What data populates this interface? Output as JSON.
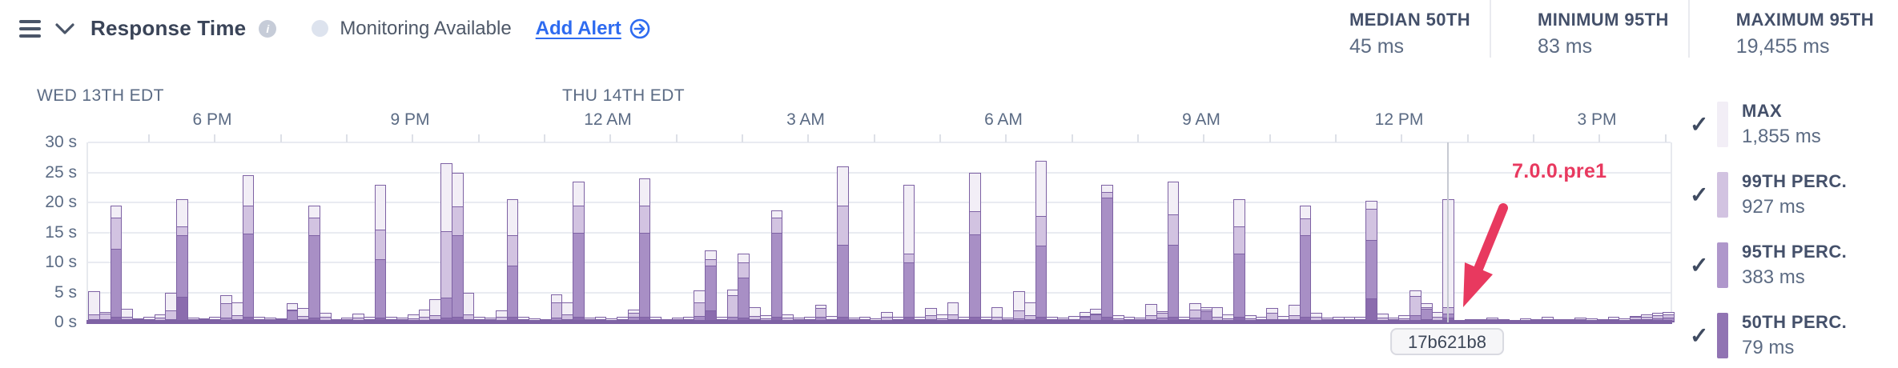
{
  "header": {
    "title": "Response Time",
    "monitoring_label": "Monitoring Available",
    "add_alert_label": "Add Alert",
    "stats": [
      {
        "label": "MEDIAN 50TH",
        "value": "45 ms"
      },
      {
        "label": "MINIMUM 95TH",
        "value": "83 ms"
      },
      {
        "label": "MAXIMUM 95TH",
        "value": "19,455 ms"
      }
    ]
  },
  "chart_data": {
    "type": "bar",
    "title": "Response Time",
    "ylabel": "seconds",
    "ylim": [
      0,
      30
    ],
    "grid": true,
    "y_ticks": [
      "30 s",
      "25 s",
      "20 s",
      "15 s",
      "10 s",
      "5 s",
      "0 s"
    ],
    "x_ticks": [
      "6 PM",
      "9 PM",
      "12 AM",
      "3 AM",
      "6 AM",
      "9 AM",
      "12 PM",
      "3 PM"
    ],
    "date_labels": [
      "WED 13TH EDT",
      "THU 14TH EDT"
    ],
    "series_order": [
      "max",
      "p99",
      "p95",
      "p50"
    ],
    "units": "seconds",
    "colors": {
      "max": "#f2eef6",
      "p99": "#d2c3e1",
      "p95": "#a88fc5",
      "p50": "#8b6cae",
      "bar_border": "#7e62a4",
      "deploy_annotation": "#e8395f"
    },
    "legend": [
      {
        "label": "MAX",
        "value": "1,855 ms",
        "color": "#f2eef6"
      },
      {
        "label": "99TH PERC.",
        "value": "927 ms",
        "color": "#d2c3e1"
      },
      {
        "label": "95TH PERC.",
        "value": "383 ms",
        "color": "#af97cb"
      },
      {
        "label": "50TH PERC.",
        "value": "79 ms",
        "color": "#9174b3"
      }
    ],
    "deploy_marker": {
      "px": 1697,
      "revision": "17b621b8",
      "annotation": "7.0.0.pre1"
    },
    "bars": [
      [
        5.2,
        1.3,
        0.5,
        0.2
      ],
      [
        1.8,
        1.5,
        0.6,
        0.3
      ],
      [
        19.5,
        17.5,
        12.3,
        0.9
      ],
      [
        2.3,
        1.0,
        0.5,
        0.2
      ],
      [
        0.7,
        0.5,
        0.3,
        0.15
      ],
      [
        0.9,
        0.6,
        0.3,
        0.15
      ],
      [
        1.4,
        0.8,
        0.4,
        0.2
      ],
      [
        4.9,
        2.0,
        0.6,
        0.25
      ],
      [
        20.5,
        16.0,
        14.5,
        4.3
      ],
      [
        0.8,
        0.5,
        0.3,
        0.15
      ],
      [
        0.7,
        0.5,
        0.3,
        0.15
      ],
      [
        1.0,
        0.6,
        0.3,
        0.15
      ],
      [
        4.6,
        3.2,
        0.8,
        0.3
      ],
      [
        3.3,
        1.2,
        0.5,
        0.2
      ],
      [
        24.5,
        19.5,
        14.8,
        0.9
      ],
      [
        0.9,
        0.6,
        0.3,
        0.15
      ],
      [
        0.8,
        0.5,
        0.3,
        0.15
      ],
      [
        0.7,
        0.5,
        0.3,
        0.15
      ],
      [
        3.2,
        2.1,
        2.0,
        0.3
      ],
      [
        2.4,
        1.1,
        0.5,
        0.2
      ],
      [
        19.5,
        17.5,
        14.5,
        0.8
      ],
      [
        1.6,
        0.9,
        0.4,
        0.2
      ],
      [
        0.6,
        0.4,
        0.3,
        0.15
      ],
      [
        0.8,
        0.5,
        0.3,
        0.15
      ],
      [
        1.5,
        0.8,
        0.4,
        0.2
      ],
      [
        0.9,
        0.5,
        0.3,
        0.15
      ],
      [
        23.0,
        15.5,
        10.5,
        0.8
      ],
      [
        1.0,
        0.6,
        0.3,
        0.15
      ],
      [
        0.8,
        0.5,
        0.3,
        0.15
      ],
      [
        1.4,
        0.7,
        0.3,
        0.15
      ],
      [
        2.1,
        0.9,
        0.4,
        0.2
      ],
      [
        3.9,
        1.2,
        0.5,
        0.2
      ],
      [
        26.5,
        15.2,
        4.2,
        0.8
      ],
      [
        25.0,
        19.3,
        14.6,
        0.9
      ],
      [
        5.0,
        1.4,
        0.5,
        0.2
      ],
      [
        0.9,
        0.5,
        0.3,
        0.15
      ],
      [
        0.8,
        0.5,
        0.3,
        0.15
      ],
      [
        2.0,
        0.9,
        0.4,
        0.2
      ],
      [
        20.5,
        14.5,
        9.5,
        0.9
      ],
      [
        0.9,
        0.5,
        0.3,
        0.15
      ],
      [
        0.7,
        0.4,
        0.3,
        0.15
      ],
      [
        0.6,
        0.4,
        0.25,
        0.12
      ],
      [
        4.7,
        3.3,
        0.8,
        0.3
      ],
      [
        3.4,
        1.3,
        0.5,
        0.2
      ],
      [
        23.5,
        19.5,
        15.0,
        0.9
      ],
      [
        0.8,
        0.5,
        0.3,
        0.15
      ],
      [
        1.0,
        0.6,
        0.3,
        0.15
      ],
      [
        0.7,
        0.4,
        0.3,
        0.15
      ],
      [
        1.0,
        0.6,
        0.3,
        0.15
      ],
      [
        2.2,
        1.6,
        0.9,
        0.3
      ],
      [
        24.0,
        19.5,
        15.0,
        0.9
      ],
      [
        0.9,
        0.5,
        0.3,
        0.15
      ],
      [
        0.6,
        0.4,
        0.25,
        0.12
      ],
      [
        0.8,
        0.5,
        0.3,
        0.15
      ],
      [
        0.9,
        0.5,
        0.3,
        0.15
      ],
      [
        5.3,
        3.3,
        1.1,
        0.3
      ],
      [
        12.0,
        10.5,
        9.5,
        2.0
      ],
      [
        0.9,
        0.6,
        0.3,
        0.15
      ],
      [
        5.5,
        4.6,
        1.0,
        0.4
      ],
      [
        11.5,
        10.0,
        7.5,
        0.8
      ],
      [
        2.5,
        1.1,
        0.5,
        0.2
      ],
      [
        1.2,
        0.7,
        0.35,
        0.15
      ],
      [
        18.7,
        17.5,
        15.0,
        0.9
      ],
      [
        1.4,
        0.8,
        0.4,
        0.2
      ],
      [
        0.8,
        0.5,
        0.3,
        0.15
      ],
      [
        0.9,
        0.5,
        0.3,
        0.15
      ],
      [
        2.9,
        2.4,
        1.0,
        0.3
      ],
      [
        1.1,
        0.6,
        0.3,
        0.15
      ],
      [
        26.0,
        19.5,
        12.9,
        0.9
      ],
      [
        0.8,
        0.5,
        0.3,
        0.15
      ],
      [
        1.0,
        0.6,
        0.3,
        0.15
      ],
      [
        0.7,
        0.4,
        0.3,
        0.15
      ],
      [
        1.8,
        0.9,
        0.4,
        0.2
      ],
      [
        1.0,
        0.6,
        0.3,
        0.15
      ],
      [
        23.0,
        11.5,
        10.0,
        0.9
      ],
      [
        0.9,
        0.5,
        0.3,
        0.15
      ],
      [
        2.4,
        1.2,
        0.5,
        0.2
      ],
      [
        1.3,
        0.7,
        0.35,
        0.15
      ],
      [
        3.3,
        1.3,
        0.5,
        0.2
      ],
      [
        1.0,
        0.6,
        0.3,
        0.15
      ],
      [
        25.0,
        18.5,
        14.7,
        0.9
      ],
      [
        0.9,
        0.5,
        0.3,
        0.15
      ],
      [
        2.6,
        1.0,
        0.45,
        0.2
      ],
      [
        0.8,
        0.5,
        0.3,
        0.15
      ],
      [
        5.2,
        2.0,
        0.7,
        0.25
      ],
      [
        3.4,
        1.2,
        0.5,
        0.2
      ],
      [
        27.0,
        17.7,
        12.8,
        0.9
      ],
      [
        0.9,
        0.5,
        0.3,
        0.15
      ],
      [
        0.8,
        0.5,
        0.3,
        0.15
      ],
      [
        1.1,
        0.6,
        0.3,
        0.15
      ],
      [
        1.7,
        1.1,
        1.0,
        0.3
      ],
      [
        2.3,
        1.5,
        1.4,
        0.35
      ],
      [
        23.0,
        21.8,
        20.8,
        1.0
      ],
      [
        1.2,
        0.7,
        0.35,
        0.15
      ],
      [
        0.9,
        0.5,
        0.3,
        0.15
      ],
      [
        0.8,
        0.5,
        0.3,
        0.15
      ],
      [
        3.1,
        1.2,
        0.5,
        0.2
      ],
      [
        1.9,
        1.6,
        0.8,
        0.3
      ],
      [
        23.5,
        18.0,
        13.0,
        0.9
      ],
      [
        1.0,
        0.6,
        0.3,
        0.15
      ],
      [
        3.2,
        2.2,
        0.8,
        0.3
      ],
      [
        2.5,
        2.1,
        1.9,
        0.4
      ],
      [
        2.6,
        1.0,
        0.45,
        0.2
      ],
      [
        1.3,
        0.7,
        0.35,
        0.15
      ],
      [
        20.5,
        16.0,
        11.5,
        0.9
      ],
      [
        1.2,
        0.7,
        0.35,
        0.15
      ],
      [
        0.9,
        0.5,
        0.3,
        0.15
      ],
      [
        2.4,
        1.6,
        0.6,
        0.25
      ],
      [
        1.1,
        0.6,
        0.3,
        0.15
      ],
      [
        3.0,
        1.2,
        0.5,
        0.2
      ],
      [
        19.5,
        17.3,
        14.5,
        0.9
      ],
      [
        1.6,
        0.9,
        0.4,
        0.2
      ],
      [
        0.8,
        0.5,
        0.3,
        0.15
      ],
      [
        0.9,
        0.5,
        0.3,
        0.15
      ],
      [
        1.0,
        0.6,
        0.3,
        0.15
      ],
      [
        0.9,
        0.5,
        0.3,
        0.15
      ],
      [
        20.3,
        19.0,
        13.8,
        4.0
      ],
      [
        1.5,
        0.8,
        0.4,
        0.2
      ],
      [
        0.8,
        0.5,
        0.3,
        0.15
      ],
      [
        1.2,
        0.7,
        0.35,
        0.15
      ],
      [
        5.3,
        4.4,
        1.2,
        0.4
      ],
      [
        3.2,
        2.5,
        2.3,
        0.5
      ],
      [
        1.7,
        0.9,
        0.4,
        0.2
      ],
      [
        20.5,
        2.5,
        1.5,
        0.8
      ],
      [
        0.4,
        0.3,
        0.2,
        0.1
      ],
      [
        0.6,
        0.4,
        0.25,
        0.12
      ],
      [
        0.5,
        0.35,
        0.25,
        0.12
      ],
      [
        0.8,
        0.5,
        0.3,
        0.15
      ],
      [
        0.6,
        0.4,
        0.25,
        0.12
      ],
      [
        0.4,
        0.3,
        0.2,
        0.1
      ],
      [
        0.7,
        0.45,
        0.3,
        0.15
      ],
      [
        0.5,
        0.35,
        0.22,
        0.1
      ],
      [
        0.9,
        0.55,
        0.3,
        0.15
      ],
      [
        0.6,
        0.4,
        0.25,
        0.12
      ],
      [
        0.5,
        0.35,
        0.22,
        0.1
      ],
      [
        0.8,
        0.5,
        0.3,
        0.15
      ],
      [
        0.7,
        0.45,
        0.28,
        0.12
      ],
      [
        0.6,
        0.4,
        0.25,
        0.12
      ],
      [
        0.9,
        0.6,
        0.3,
        0.15
      ],
      [
        0.7,
        0.45,
        0.28,
        0.12
      ],
      [
        1.1,
        0.9,
        0.5,
        0.2
      ],
      [
        1.3,
        1.0,
        0.6,
        0.25
      ],
      [
        1.6,
        1.2,
        0.7,
        0.3
      ],
      [
        1.8,
        1.4,
        0.8,
        0.3
      ]
    ]
  }
}
